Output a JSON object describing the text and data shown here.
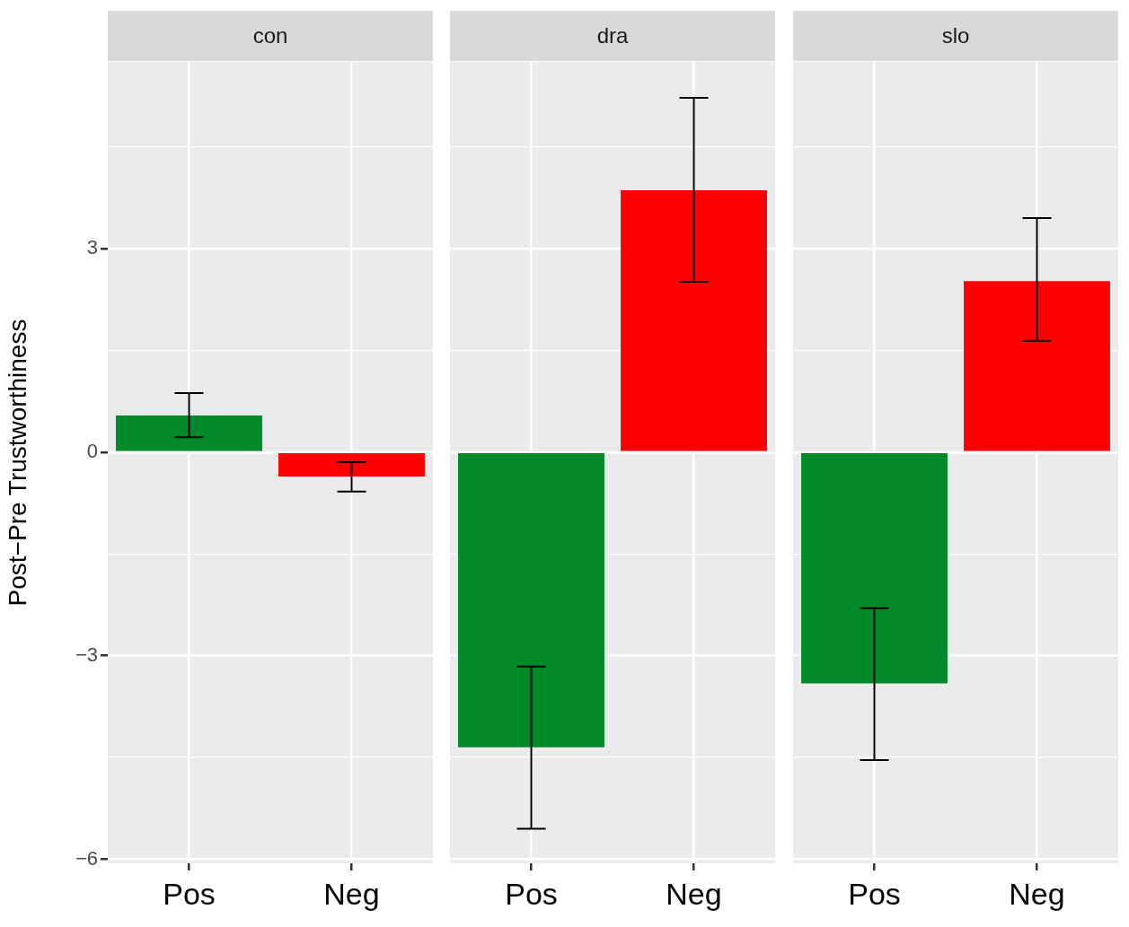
{
  "chart_data": [
    {
      "type": "bar",
      "title": "con",
      "ylabel": "Post−Pre Trustworthiness",
      "categories": [
        "Pos",
        "Neg"
      ],
      "ylim": [
        -6.06,
        5.75
      ],
      "yticks": [
        -6,
        {
          "value": -4.5,
          "label": null
        },
        -3,
        {
          "value": -1.5,
          "label": null
        },
        0,
        {
          "value": 1.5,
          "label": null
        },
        3,
        {
          "value": 4.5,
          "label": null
        }
      ],
      "grid": true,
      "series": [
        {
          "colors": [
            "#008a2a",
            "#ff0000"
          ],
          "values": [
            0.54,
            -0.36
          ],
          "errors": [
            [
              0.22,
              0.87
            ],
            [
              -0.58,
              -0.15
            ]
          ]
        }
      ]
    },
    {
      "type": "bar",
      "title": "dra",
      "categories": [
        "Pos",
        "Neg"
      ],
      "ylim": [
        -6.06,
        5.75
      ],
      "yticks": [
        -6,
        {
          "value": -4.5,
          "label": null
        },
        -3,
        {
          "value": -1.5,
          "label": null
        },
        0,
        {
          "value": 1.5,
          "label": null
        },
        3,
        {
          "value": 4.5,
          "label": null
        }
      ],
      "grid": true,
      "tick_labels": "x",
      "series": [
        {
          "colors": [
            "#008a2a",
            "#ff0000"
          ],
          "values": [
            -4.35,
            3.86
          ],
          "errors": [
            [
              -5.55,
              -3.16
            ],
            [
              2.51,
              5.22
            ]
          ]
        }
      ]
    },
    {
      "type": "bar",
      "title": "slo",
      "categories": [
        "Pos",
        "Neg"
      ],
      "ylim": [
        -6.06,
        5.75
      ],
      "yticks": [
        -6,
        {
          "value": -4.5,
          "label": null
        },
        -3,
        {
          "value": -1.5,
          "label": null
        },
        0,
        {
          "value": 1.5,
          "label": null
        },
        3,
        {
          "value": 4.5,
          "label": null
        }
      ],
      "grid": true,
      "tick_labels": "x",
      "series": [
        {
          "colors": [
            "#008a2a",
            "#ff0000"
          ],
          "values": [
            -3.41,
            2.52
          ],
          "errors": [
            [
              -4.54,
              -2.3
            ],
            [
              1.64,
              3.45
            ]
          ]
        }
      ]
    }
  ]
}
